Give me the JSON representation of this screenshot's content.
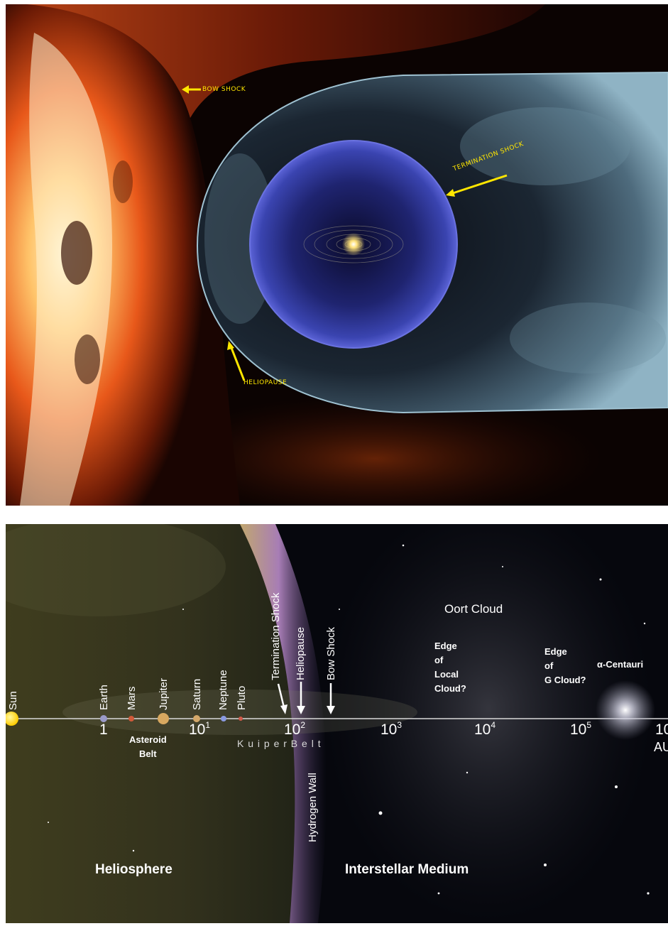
{
  "top_panel": {
    "labels": {
      "bow_shock": "Bow Shock",
      "termination_shock": "Termination Shock",
      "heliopause": "Heliopause"
    },
    "arrow_color": "#ffe600"
  },
  "bottom_panel": {
    "objects": [
      "Sun",
      "Earth",
      "Mars",
      "Jupiter",
      "Saturn",
      "Neptune",
      "Pluto"
    ],
    "boundaries": [
      "Termination Shock",
      "Heliopause",
      "Bow Shock"
    ],
    "hydrogen_wall": "Hydrogen Wall",
    "ticks": [
      {
        "base": "1",
        "exp": ""
      },
      {
        "base": "10",
        "exp": "1"
      },
      {
        "base": "10",
        "exp": "2"
      },
      {
        "base": "10",
        "exp": "3"
      },
      {
        "base": "10",
        "exp": "4"
      },
      {
        "base": "10",
        "exp": "5"
      },
      {
        "base": "10",
        "exp": ""
      }
    ],
    "unit": "AU",
    "asteroid_belt": [
      "Asteroid",
      "Belt"
    ],
    "kuiper_belt": "K u i p e r   B e l t",
    "oort_cloud": "Oort Cloud",
    "edge_local": [
      "Edge",
      "of",
      "Local",
      "Cloud?"
    ],
    "edge_g": [
      "Edge",
      "of",
      "G Cloud?"
    ],
    "alpha_centauri": "α-Centauri",
    "heliosphere": "Heliosphere",
    "interstellar_medium": "Interstellar Medium"
  }
}
